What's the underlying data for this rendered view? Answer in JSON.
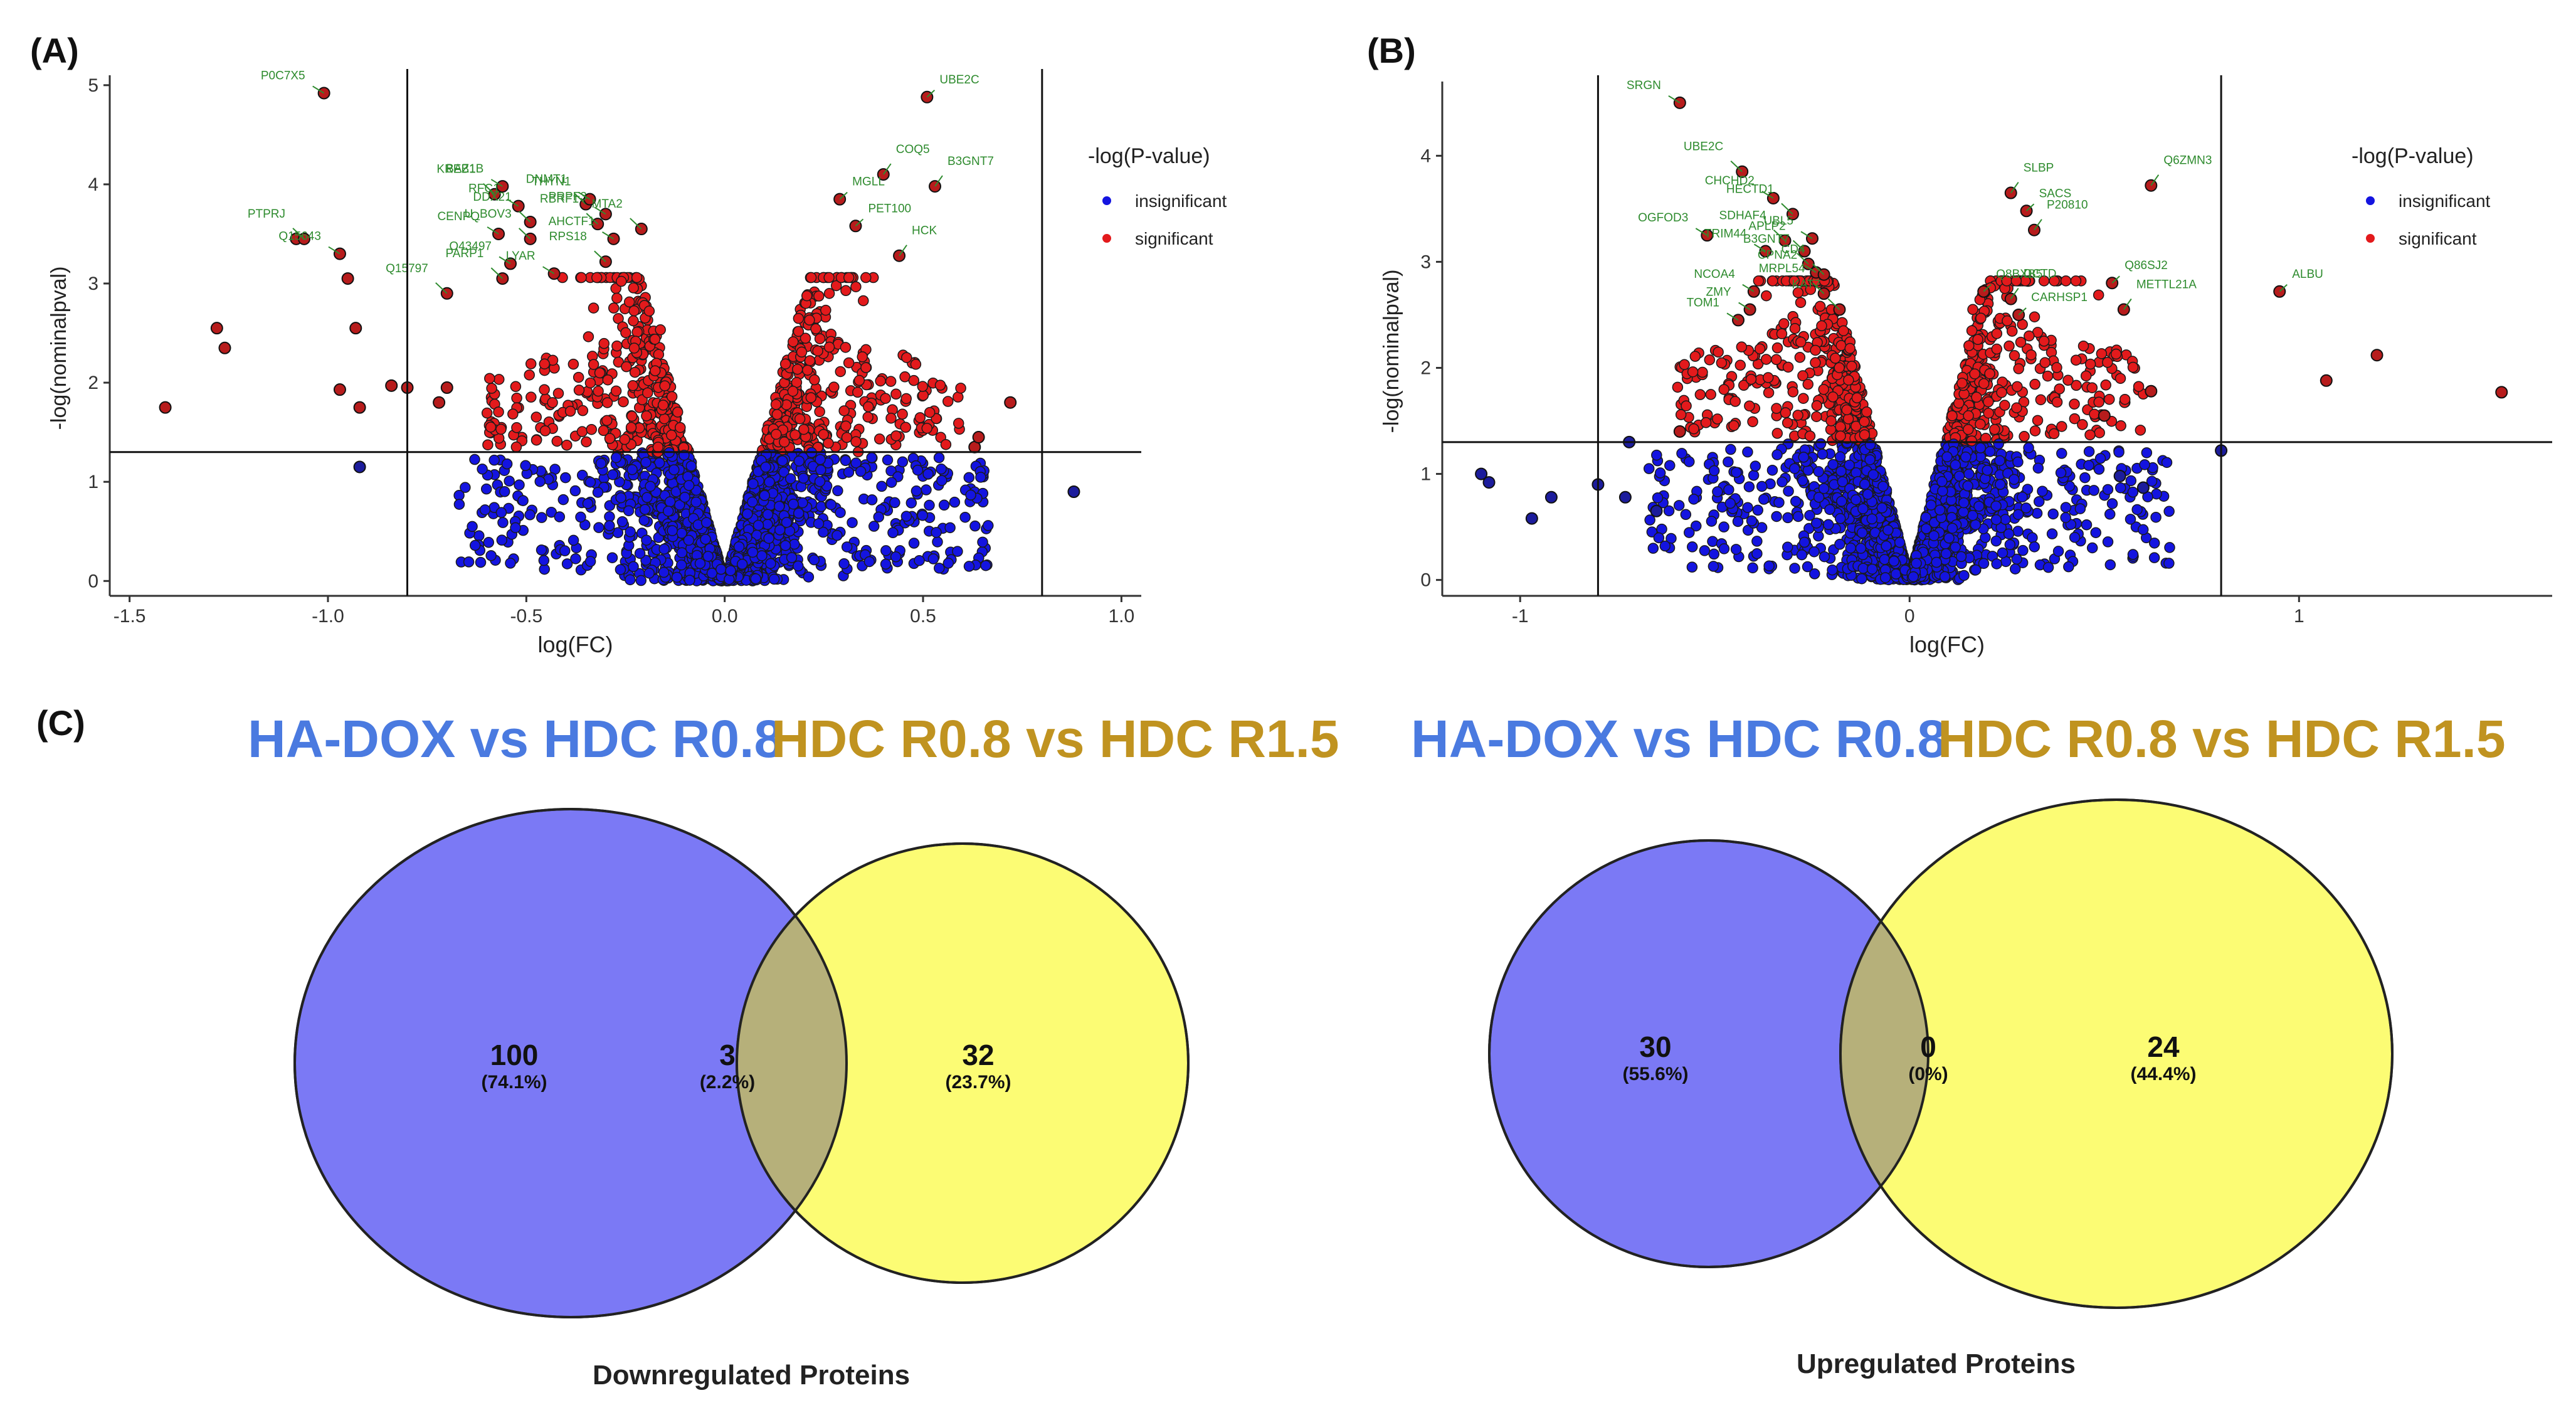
{
  "panel_labels": {
    "a": "(A)",
    "b": "(B)",
    "c": "(C)"
  },
  "colors": {
    "significant": "#e31a1c",
    "insignificant": "#1414e0",
    "label_green": "#2e8b2e",
    "venn_left": "#7b79f5",
    "venn_right": "#fcfc74",
    "venn_overlap": "#b6b07a",
    "title_blue": "#4a7ae0",
    "title_gold": "#c09320"
  },
  "chart_data": [
    {
      "id": "A",
      "type": "scatter",
      "xlabel": "log(FC)",
      "ylabel": "-log(nominalpval)",
      "xlim": [
        -1.55,
        1.05
      ],
      "ylim": [
        -0.15,
        5.1
      ],
      "xticks": [
        -1.5,
        -1.0,
        -0.5,
        0.0,
        0.5,
        1.0
      ],
      "xtick_labels": [
        "-1.5",
        "-1.0",
        "-0.5",
        "0.0",
        "0.5",
        "1.0"
      ],
      "yticks": [
        0,
        1,
        2,
        3,
        4,
        5
      ],
      "ytick_labels": [
        "0",
        "1",
        "2",
        "3",
        "4",
        "5"
      ],
      "hline": 1.3,
      "vlines": [
        -0.8,
        0.8
      ],
      "legend": {
        "title": "-log(P-value)",
        "items": [
          "insignificant",
          "significant"
        ],
        "position": "top-right"
      },
      "highlighted": [
        {
          "x": -1.41,
          "y": 1.75
        },
        {
          "x": -1.28,
          "y": 2.55
        },
        {
          "x": -1.26,
          "y": 2.35
        },
        {
          "x": -1.08,
          "y": 3.45
        },
        {
          "x": -0.93,
          "y": 2.55
        },
        {
          "x": -0.95,
          "y": 3.05
        },
        {
          "x": -0.92,
          "y": 1.75
        },
        {
          "x": -0.97,
          "y": 1.93
        },
        {
          "x": -0.84,
          "y": 1.97
        },
        {
          "x": -0.8,
          "y": 1.95
        },
        {
          "x": -0.92,
          "y": 1.15
        },
        {
          "x": -0.72,
          "y": 1.8
        },
        {
          "x": -0.7,
          "y": 1.95
        },
        {
          "x": 0.88,
          "y": 0.9
        },
        {
          "x": 0.72,
          "y": 1.8
        },
        {
          "x": 0.63,
          "y": 1.35
        },
        {
          "x": 0.64,
          "y": 1.45
        }
      ],
      "labeled_points": [
        {
          "label": "P0C7X5",
          "x": -1.01,
          "y": 4.92
        },
        {
          "label": "PTPRJ",
          "x": -1.06,
          "y": 3.45
        },
        {
          "label": "Q15643",
          "x": -0.97,
          "y": 3.3
        },
        {
          "label": "Q15797",
          "x": -0.7,
          "y": 2.9
        },
        {
          "label": "BAZ1B",
          "x": -0.56,
          "y": 3.98
        },
        {
          "label": "KREB1",
          "x": -0.58,
          "y": 3.9
        },
        {
          "label": "RFC1",
          "x": -0.52,
          "y": 3.78
        },
        {
          "label": "DDX21",
          "x": -0.49,
          "y": 3.62
        },
        {
          "label": "CENPQ",
          "x": -0.57,
          "y": 3.5
        },
        {
          "label": "U_BOV3",
          "x": -0.49,
          "y": 3.45
        },
        {
          "label": "O43497",
          "x": -0.54,
          "y": 3.2
        },
        {
          "label": "PARP1",
          "x": -0.56,
          "y": 3.05
        },
        {
          "label": "LYAR",
          "x": -0.43,
          "y": 3.1
        },
        {
          "label": "DNMT1",
          "x": -0.35,
          "y": 3.8
        },
        {
          "label": "THYN1",
          "x": -0.34,
          "y": 3.85
        },
        {
          "label": "RBRF1",
          "x": -0.32,
          "y": 3.6
        },
        {
          "label": "PRPF3",
          "x": -0.3,
          "y": 3.7
        },
        {
          "label": "MTA2",
          "x": -0.21,
          "y": 3.55
        },
        {
          "label": "AHCTF1",
          "x": -0.28,
          "y": 3.45
        },
        {
          "label": "RPS18",
          "x": -0.3,
          "y": 3.22
        },
        {
          "label": "UBE2C",
          "x": 0.51,
          "y": 4.88
        },
        {
          "label": "COQ5",
          "x": 0.4,
          "y": 4.1
        },
        {
          "label": "MGLL",
          "x": 0.29,
          "y": 3.85
        },
        {
          "label": "B3GNT7",
          "x": 0.53,
          "y": 3.98
        },
        {
          "label": "PET100",
          "x": 0.33,
          "y": 3.58
        },
        {
          "label": "HCK",
          "x": 0.44,
          "y": 3.28
        }
      ]
    },
    {
      "id": "B",
      "type": "scatter",
      "xlabel": "log(FC)",
      "ylabel": "-log(nominalpval)",
      "xlim": [
        -1.2,
        1.65
      ],
      "ylim": [
        -0.15,
        4.7
      ],
      "xticks": [
        -1,
        0,
        1
      ],
      "xtick_labels": [
        "-1",
        "0",
        "1"
      ],
      "yticks": [
        0,
        1,
        2,
        3,
        4
      ],
      "ytick_labels": [
        "0",
        "1",
        "2",
        "3",
        "4"
      ],
      "hline": 1.3,
      "vlines": [
        -0.8,
        0.8
      ],
      "legend": {
        "title": "-log(P-value)",
        "items": [
          "insignificant",
          "significant"
        ],
        "position": "top-right"
      },
      "highlighted": [
        {
          "x": -1.1,
          "y": 1.0
        },
        {
          "x": -1.08,
          "y": 0.92
        },
        {
          "x": -0.97,
          "y": 0.58
        },
        {
          "x": -0.92,
          "y": 0.78
        },
        {
          "x": -0.72,
          "y": 1.3
        },
        {
          "x": -0.8,
          "y": 0.9
        },
        {
          "x": -0.73,
          "y": 0.78
        },
        {
          "x": -0.65,
          "y": 0.65
        },
        {
          "x": 0.8,
          "y": 1.22
        },
        {
          "x": 0.6,
          "y": 0.87
        },
        {
          "x": 0.54,
          "y": 0.98
        },
        {
          "x": 1.07,
          "y": 1.88
        },
        {
          "x": 1.2,
          "y": 2.12
        },
        {
          "x": 1.52,
          "y": 1.77
        },
        {
          "x": 0.5,
          "y": 1.55
        },
        {
          "x": 0.62,
          "y": 1.78
        },
        {
          "x": -0.59,
          "y": 1.4
        }
      ],
      "labeled_points": [
        {
          "label": "SRGN",
          "x": -0.59,
          "y": 4.5
        },
        {
          "label": "UBE2C",
          "x": -0.43,
          "y": 3.85
        },
        {
          "label": "CHCHD2",
          "x": -0.35,
          "y": 3.6
        },
        {
          "label": "HECTD1",
          "x": -0.3,
          "y": 3.45
        },
        {
          "label": "OGFOD3",
          "x": -0.52,
          "y": 3.25
        },
        {
          "label": "SDHAF4",
          "x": -0.32,
          "y": 3.2
        },
        {
          "label": "TRIM44",
          "x": -0.37,
          "y": 3.1
        },
        {
          "label": "APLP2",
          "x": -0.27,
          "y": 3.1
        },
        {
          "label": "UBL5",
          "x": -0.25,
          "y": 3.22
        },
        {
          "label": "B3GNT7",
          "x": -0.26,
          "y": 2.98
        },
        {
          "label": "CPNA2",
          "x": -0.24,
          "y": 2.9
        },
        {
          "label": "CD4",
          "x": -0.22,
          "y": 2.88
        },
        {
          "label": "NCOA4",
          "x": -0.4,
          "y": 2.72
        },
        {
          "label": "MRPL54",
          "x": -0.22,
          "y": 2.7
        },
        {
          "label": "ZMY",
          "x": -0.41,
          "y": 2.55
        },
        {
          "label": "KAT7",
          "x": -0.18,
          "y": 2.55
        },
        {
          "label": "TOM1",
          "x": -0.44,
          "y": 2.45
        },
        {
          "label": "SLBP",
          "x": 0.26,
          "y": 3.65
        },
        {
          "label": "SACS",
          "x": 0.3,
          "y": 3.48
        },
        {
          "label": "P20810",
          "x": 0.32,
          "y": 3.3
        },
        {
          "label": "Q8BXB5",
          "x": 0.19,
          "y": 2.72
        },
        {
          "label": "DCTD",
          "x": 0.26,
          "y": 2.65
        },
        {
          "label": "CARHSP1",
          "x": 0.28,
          "y": 2.5
        },
        {
          "label": "Q6ZMN3",
          "x": 0.62,
          "y": 3.72
        },
        {
          "label": "Q86SJ2",
          "x": 0.52,
          "y": 2.8
        },
        {
          "label": "METTL21A",
          "x": 0.55,
          "y": 2.55
        },
        {
          "label": "ALBU",
          "x": 0.95,
          "y": 2.72
        }
      ]
    },
    {
      "id": "C-left",
      "type": "venn",
      "sets": [
        "HA-DOX vs HDC R0.8",
        "HDC R0.8 vs HDC R1.5"
      ],
      "regions": [
        {
          "region": "left_only",
          "count": 100,
          "percent": "(74.1%)"
        },
        {
          "region": "overlap",
          "count": 3,
          "percent": "(2.2%)"
        },
        {
          "region": "right_only",
          "count": 32,
          "percent": "(23.7%)"
        }
      ],
      "caption": "Downregulated Proteins"
    },
    {
      "id": "C-right",
      "type": "venn",
      "sets": [
        "HA-DOX vs HDC R0.8",
        "HDC R0.8 vs HDC R1.5"
      ],
      "regions": [
        {
          "region": "left_only",
          "count": 30,
          "percent": "(55.6%)"
        },
        {
          "region": "overlap",
          "count": 0,
          "percent": "(0%)"
        },
        {
          "region": "right_only",
          "count": 24,
          "percent": "(44.4%)"
        }
      ],
      "caption": "Upregulated Proteins"
    }
  ]
}
